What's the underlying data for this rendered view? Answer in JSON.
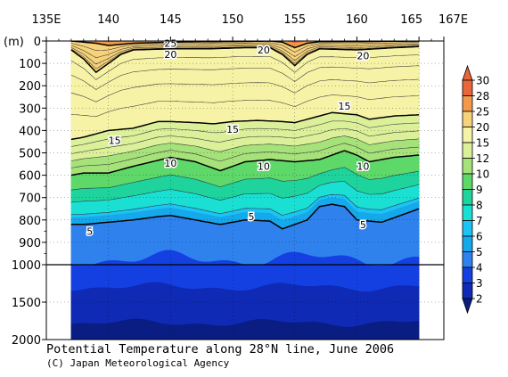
{
  "chart_data": {
    "type": "contour",
    "title": "Potential Temperature along 28°N line, June 2006",
    "credit": "(C) Japan Meteorological Agency",
    "x_ticks": [
      "135E",
      "140",
      "145",
      "150",
      "155",
      "160",
      "165",
      "167E"
    ],
    "x_tick_values": [
      135,
      140,
      145,
      150,
      155,
      160,
      165,
      167
    ],
    "xlim": [
      135,
      167
    ],
    "data_xlim": [
      137,
      165
    ],
    "y_unit_label": "(m)",
    "y_ticks_upper": [
      "0",
      "100",
      "200",
      "300",
      "400",
      "500",
      "600",
      "700",
      "800",
      "900",
      "1000"
    ],
    "y_tick_values_upper": [
      0,
      100,
      200,
      300,
      400,
      500,
      600,
      700,
      800,
      900,
      1000
    ],
    "y_ticks_lower": [
      "1500",
      "2000"
    ],
    "y_tick_values_lower": [
      1500,
      2000
    ],
    "ylim": [
      0,
      2000
    ],
    "y_break": 1000,
    "contour_levels": [
      30,
      28,
      25,
      20,
      15,
      12,
      10,
      9,
      8,
      7,
      6,
      5,
      4,
      3,
      2
    ],
    "colorbar_labels": [
      "30",
      "28",
      "25",
      "20",
      "15",
      "12",
      "10",
      "9",
      "8",
      "7",
      "6",
      "5",
      "4",
      "3",
      "2"
    ],
    "colors": {
      "c_above28": "#e8663a",
      "c_25_28": "#f39a4a",
      "c_20_25": "#f6d27a",
      "c_15_20": "#f6f3a6",
      "c_12_15": "#dcf09a",
      "c_10_12": "#a6e27a",
      "c_9_10": "#5fd86a",
      "c_8_9": "#1fd39c",
      "c_7_8": "#1ae0d4",
      "c_6_7": "#1cc3f3",
      "c_5_6": "#15a8ea",
      "c_4_5": "#2f82ee",
      "c_3_4": "#1440e2",
      "c_2_3": "#0f2ab4",
      "c_below2": "#0a1d82"
    },
    "isotherms": [
      {
        "level": 25,
        "x": [
          137,
          138,
          139,
          140,
          142,
          145,
          148,
          151,
          153,
          154,
          155,
          156,
          157,
          160,
          163,
          165
        ],
        "depth": [
          0,
          5,
          10,
          20,
          10,
          5,
          3,
          2,
          0,
          5,
          30,
          10,
          3,
          3,
          1,
          0
        ]
      },
      {
        "level": 20,
        "x": [
          137,
          138,
          139,
          140,
          141,
          142,
          145,
          148,
          151,
          153,
          154,
          155,
          156,
          157,
          160,
          163,
          165
        ],
        "depth": [
          40,
          80,
          140,
          100,
          60,
          40,
          35,
          35,
          30,
          30,
          60,
          110,
          60,
          35,
          40,
          30,
          25
        ]
      },
      {
        "level": 15,
        "x": [
          137,
          138,
          140,
          142,
          144,
          145,
          147,
          148.5,
          150,
          152,
          154,
          155,
          156,
          158,
          160,
          161,
          163,
          165
        ],
        "depth": [
          440,
          430,
          400,
          390,
          360,
          360,
          365,
          370,
          360,
          355,
          360,
          365,
          350,
          320,
          330,
          350,
          335,
          330
        ]
      },
      {
        "level": 10,
        "x": [
          137,
          138,
          140,
          142,
          145,
          147,
          149,
          151,
          153,
          155,
          157,
          159,
          160,
          161,
          163,
          165
        ],
        "depth": [
          600,
          590,
          590,
          560,
          520,
          540,
          580,
          540,
          530,
          540,
          530,
          490,
          510,
          540,
          520,
          510
        ]
      },
      {
        "level": 5,
        "x": [
          137,
          138,
          140,
          142,
          144,
          145,
          147,
          149,
          151,
          153,
          154,
          155,
          156,
          157,
          158,
          159,
          160,
          162,
          164,
          165
        ],
        "depth": [
          820,
          820,
          810,
          800,
          785,
          780,
          800,
          820,
          800,
          805,
          840,
          820,
          800,
          740,
          730,
          740,
          800,
          810,
          770,
          750
        ]
      }
    ],
    "contour_labels": [
      {
        "text": "25",
        "x": 145,
        "depth": 10
      },
      {
        "text": "20",
        "x": 145,
        "depth": 60
      },
      {
        "text": "20",
        "x": 152.5,
        "depth": 40
      },
      {
        "text": "20",
        "x": 160.5,
        "depth": 65
      },
      {
        "text": "15",
        "x": 140.5,
        "depth": 445
      },
      {
        "text": "15",
        "x": 150,
        "depth": 395
      },
      {
        "text": "15",
        "x": 159,
        "depth": 290
      },
      {
        "text": "10",
        "x": 145,
        "depth": 545
      },
      {
        "text": "10",
        "x": 152.5,
        "depth": 560
      },
      {
        "text": "10",
        "x": 160.5,
        "depth": 560
      },
      {
        "text": "5",
        "x": 138.5,
        "depth": 850
      },
      {
        "text": "5",
        "x": 151.5,
        "depth": 785
      },
      {
        "text": "5",
        "x": 160.5,
        "depth": 820
      }
    ]
  }
}
